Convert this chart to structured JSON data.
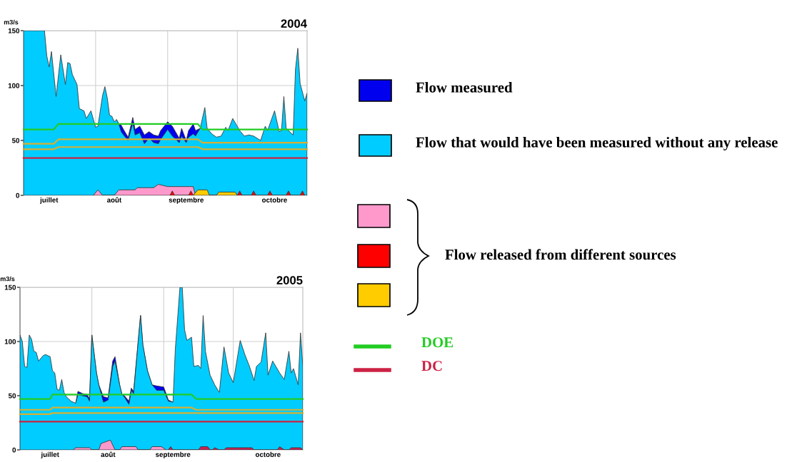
{
  "chart_data": [
    {
      "type": "area",
      "title": "2004",
      "ylabel": "m3/s",
      "legend": "right",
      "grid": true,
      "annotations": [
        "Flow released from different sources"
      ],
      "xlim": [
        "2004-07-01",
        "2004-10-31"
      ],
      "ylim": [
        0,
        150
      ],
      "yticks": [
        0,
        50,
        100,
        150
      ],
      "xticks": [
        {
          "value": "2004-07-12",
          "label": "juillet"
        },
        {
          "value": "2004-08-01",
          "label": null
        },
        {
          "value": "2004-08-09",
          "label": "août"
        },
        {
          "value": "2004-09-01",
          "label": null
        },
        {
          "value": "2004-09-09",
          "label": "septembre"
        },
        {
          "value": "2004-10-01",
          "label": null
        },
        {
          "value": "2004-10-17",
          "label": "octobre"
        }
      ],
      "series": [
        {
          "name": "Flow measured",
          "type": "area",
          "color": "#0000ee",
          "x": [
            "2004-08-10",
            "2004-08-11",
            "2004-08-12",
            "2004-08-13",
            "2004-08-15",
            "2004-08-17",
            "2004-08-18",
            "2004-08-20",
            "2004-08-22",
            "2004-08-24",
            "2004-08-26",
            "2004-08-28",
            "2004-08-29",
            "2004-09-01",
            "2004-09-03",
            "2004-09-06",
            "2004-09-07",
            "2004-09-09",
            "2004-09-10",
            "2004-09-12",
            "2004-09-13",
            "2004-09-15"
          ],
          "values": [
            69,
            65,
            64,
            60,
            53,
            71,
            60,
            63,
            55,
            58,
            55,
            54,
            59,
            67,
            63,
            52,
            61,
            50,
            59,
            65,
            59,
            61
          ]
        },
        {
          "name": "Flow that would have been measured without any release",
          "type": "area",
          "color": "#00ccff",
          "x": [
            "2004-07-01",
            "2004-07-10",
            "2004-07-11",
            "2004-07-12",
            "2004-07-13",
            "2004-07-15",
            "2004-07-17",
            "2004-07-19",
            "2004-07-20",
            "2004-07-21",
            "2004-07-22",
            "2004-07-24",
            "2004-07-25",
            "2004-07-27",
            "2004-07-28",
            "2004-07-30",
            "2004-08-01",
            "2004-08-02",
            "2004-08-04",
            "2004-08-05",
            "2004-08-06",
            "2004-08-07",
            "2004-08-08",
            "2004-08-09",
            "2004-08-10",
            "2004-08-11",
            "2004-08-12",
            "2004-08-13",
            "2004-08-15",
            "2004-08-17",
            "2004-08-18",
            "2004-08-20",
            "2004-08-22",
            "2004-08-24",
            "2004-08-26",
            "2004-08-28",
            "2004-08-29",
            "2004-09-01",
            "2004-09-03",
            "2004-09-06",
            "2004-09-07",
            "2004-09-09",
            "2004-09-10",
            "2004-09-12",
            "2004-09-13",
            "2004-09-15",
            "2004-09-17",
            "2004-09-18",
            "2004-09-20",
            "2004-09-22",
            "2004-09-24",
            "2004-09-26",
            "2004-09-27",
            "2004-09-29",
            "2004-10-02",
            "2004-10-04",
            "2004-10-06",
            "2004-10-08",
            "2004-10-11",
            "2004-10-13",
            "2004-10-14",
            "2004-10-17",
            "2004-10-19",
            "2004-10-20",
            "2004-10-21",
            "2004-10-22",
            "2004-10-25",
            "2004-10-26",
            "2004-10-27",
            "2004-10-28",
            "2004-10-30",
            "2004-10-31"
          ],
          "values": [
            150,
            150,
            127,
            117,
            131,
            90,
            128,
            101,
            121,
            120,
            110,
            101,
            79,
            77,
            70,
            77,
            62,
            63,
            91,
            99,
            89,
            73,
            72,
            67,
            69,
            65,
            58,
            55,
            50,
            66,
            55,
            57,
            47,
            52,
            48,
            47,
            51,
            60,
            54,
            48,
            54,
            48,
            53,
            56,
            54,
            61,
            80,
            61,
            56,
            53,
            54,
            62,
            59,
            70,
            59,
            54,
            55,
            54,
            50,
            63,
            59,
            77,
            58,
            59,
            90,
            61,
            55,
            115,
            134,
            102,
            86,
            93
          ]
        },
        {
          "type": "area",
          "color": "#ff99cc",
          "x": [
            "2004-07-31",
            "2004-08-02",
            "2004-08-04",
            "2004-08-09",
            "2004-08-11",
            "2004-08-18",
            "2004-08-19",
            "2004-08-26",
            "2004-08-28",
            "2004-09-01",
            "2004-09-12",
            "2004-09-13"
          ],
          "values": [
            0,
            5,
            0,
            0,
            5,
            5,
            7,
            7,
            10,
            8,
            8,
            0
          ]
        },
        {
          "type": "area",
          "color": "#ff0000",
          "x": [
            "2004-09-02",
            "2004-09-03",
            "2004-09-04",
            "2004-09-10",
            "2004-09-11",
            "2004-09-12",
            "2004-09-16",
            "2004-09-17",
            "2004-09-18",
            "2004-10-01",
            "2004-10-02",
            "2004-10-03",
            "2004-10-07",
            "2004-10-08",
            "2004-10-09",
            "2004-10-14",
            "2004-10-15",
            "2004-10-16",
            "2004-10-22",
            "2004-10-23",
            "2004-10-24",
            "2004-10-28",
            "2004-10-29",
            "2004-10-30"
          ],
          "values": [
            0,
            4,
            0,
            0,
            4,
            0,
            0,
            4,
            0,
            0,
            4,
            0,
            0,
            4,
            0,
            0,
            4,
            0,
            0,
            4,
            0,
            0,
            4,
            0
          ]
        },
        {
          "type": "area",
          "color": "#ffcc00",
          "x": [
            "2004-09-12",
            "2004-09-14",
            "2004-09-18",
            "2004-09-19",
            "2004-09-22",
            "2004-09-23",
            "2004-09-30",
            "2004-10-01"
          ],
          "values": [
            0,
            5,
            5,
            0,
            0,
            3,
            3,
            0
          ]
        },
        {
          "type": "line",
          "color": "#d9b030",
          "x": [
            "2004-07-01",
            "2004-07-14",
            "2004-07-16",
            "2004-09-14",
            "2004-09-16",
            "2004-10-31"
          ],
          "values": [
            42,
            42,
            44,
            44,
            42,
            42
          ]
        },
        {
          "type": "line",
          "color": "#d9b030",
          "x": [
            "2004-07-01",
            "2004-07-14",
            "2004-07-16",
            "2004-09-14",
            "2004-09-16",
            "2004-10-31"
          ],
          "values": [
            47,
            47,
            51,
            51,
            48,
            48
          ]
        },
        {
          "name": "DOE",
          "type": "line",
          "color": "#22cc22",
          "x": [
            "2004-07-01",
            "2004-07-14",
            "2004-07-16",
            "2004-09-14",
            "2004-09-16",
            "2004-10-31"
          ],
          "values": [
            60,
            60,
            65,
            65,
            60,
            60
          ]
        },
        {
          "name": "DC",
          "type": "line",
          "color": "#cc2244",
          "x": [
            "2004-07-01",
            "2004-10-31"
          ],
          "values": [
            34,
            34
          ]
        }
      ]
    },
    {
      "type": "area",
      "title": "2005",
      "ylabel": "m3/s",
      "grid": true,
      "xlim": [
        "2005-07-01",
        "2005-10-31"
      ],
      "ylim": [
        0,
        150
      ],
      "yticks": [
        0,
        50,
        100,
        150
      ],
      "xticks": [
        {
          "value": "2005-07-14",
          "label": "juillet"
        },
        {
          "value": "2005-08-01",
          "label": null
        },
        {
          "value": "2005-08-08",
          "label": "août"
        },
        {
          "value": "2005-09-01",
          "label": null
        },
        {
          "value": "2005-09-05",
          "label": "septembre"
        },
        {
          "value": "2005-10-01",
          "label": null
        },
        {
          "value": "2005-10-16",
          "label": "octobre"
        }
      ],
      "series": [
        {
          "type": "area",
          "color": "#0000ee",
          "x": [
            "2005-07-25",
            "2005-07-26",
            "2005-07-28",
            "2005-07-30",
            "2005-07-31",
            "2005-08-01",
            "2005-08-03",
            "2005-08-04",
            "2005-08-06",
            "2005-08-08",
            "2005-08-10",
            "2005-08-11",
            "2005-08-13",
            "2005-08-14",
            "2005-08-15",
            "2005-08-17",
            "2005-08-18",
            "2005-08-19",
            "2005-08-22",
            "2005-08-23",
            "2005-08-25",
            "2005-08-27",
            "2005-08-29",
            "2005-09-01",
            "2005-09-03",
            "2005-09-05"
          ],
          "values": [
            43,
            54,
            52,
            51,
            47,
            106,
            71,
            60,
            49,
            48,
            82,
            86,
            60,
            51,
            50,
            45,
            57,
            54,
            124,
            97,
            73,
            60,
            59,
            58,
            46,
            44
          ]
        },
        {
          "type": "area",
          "color": "#00ccff",
          "x": [
            "2005-07-01",
            "2005-07-02",
            "2005-07-03",
            "2005-07-04",
            "2005-07-05",
            "2005-07-06",
            "2005-07-07",
            "2005-07-08",
            "2005-07-09",
            "2005-07-11",
            "2005-07-12",
            "2005-07-14",
            "2005-07-15",
            "2005-07-16",
            "2005-07-17",
            "2005-07-18",
            "2005-07-19",
            "2005-07-20",
            "2005-07-21",
            "2005-07-23",
            "2005-07-25",
            "2005-07-26",
            "2005-07-28",
            "2005-07-30",
            "2005-07-31",
            "2005-08-01",
            "2005-08-03",
            "2005-08-04",
            "2005-08-06",
            "2005-08-08",
            "2005-08-10",
            "2005-08-11",
            "2005-08-13",
            "2005-08-14",
            "2005-08-15",
            "2005-08-17",
            "2005-08-18",
            "2005-08-19",
            "2005-08-22",
            "2005-08-23",
            "2005-08-25",
            "2005-08-27",
            "2005-08-29",
            "2005-09-01",
            "2005-09-03",
            "2005-09-05",
            "2005-09-06",
            "2005-09-08",
            "2005-09-09",
            "2005-09-10",
            "2005-09-11",
            "2005-09-13",
            "2005-09-14",
            "2005-09-16",
            "2005-09-17",
            "2005-09-18",
            "2005-09-19",
            "2005-09-21",
            "2005-09-23",
            "2005-09-25",
            "2005-09-27",
            "2005-09-29",
            "2005-10-01",
            "2005-10-04",
            "2005-10-06",
            "2005-10-08",
            "2005-10-10",
            "2005-10-11",
            "2005-10-13",
            "2005-10-15",
            "2005-10-16",
            "2005-10-18",
            "2005-10-21",
            "2005-10-23",
            "2005-10-25",
            "2005-10-26",
            "2005-10-27",
            "2005-10-29",
            "2005-10-30",
            "2005-10-31"
          ],
          "values": [
            106,
            100,
            77,
            76,
            106,
            102,
            91,
            90,
            82,
            87,
            88,
            86,
            73,
            71,
            56,
            55,
            65,
            53,
            49,
            45,
            43,
            51,
            50,
            49,
            45,
            106,
            71,
            60,
            44,
            46,
            77,
            82,
            60,
            51,
            49,
            42,
            55,
            52,
            124,
            97,
            73,
            60,
            55,
            55,
            45,
            44,
            93,
            150,
            150,
            111,
            101,
            104,
            77,
            78,
            75,
            124,
            91,
            69,
            60,
            53,
            95,
            71,
            62,
            101,
            88,
            77,
            64,
            77,
            81,
            108,
            69,
            82,
            71,
            65,
            91,
            71,
            75,
            60,
            108,
            77
          ]
        },
        {
          "type": "area",
          "color": "#ff99cc",
          "x": [
            "2005-07-24",
            "2005-07-25",
            "2005-07-31",
            "2005-08-01",
            "2005-08-04",
            "2005-08-05",
            "2005-08-09",
            "2005-08-11",
            "2005-08-13",
            "2005-08-14",
            "2005-08-20",
            "2005-08-21",
            "2005-08-26",
            "2005-08-27",
            "2005-08-31",
            "2005-09-02"
          ],
          "values": [
            0,
            2,
            2,
            0,
            0,
            6,
            9,
            0,
            0,
            3,
            3,
            0,
            0,
            3,
            3,
            0
          ]
        },
        {
          "type": "area",
          "color": "#cc2255",
          "x": [
            "2005-09-03",
            "2005-09-04",
            "2005-09-05",
            "2005-09-16",
            "2005-09-17",
            "2005-09-20",
            "2005-09-21",
            "2005-09-22",
            "2005-09-23",
            "2005-09-25",
            "2005-09-27",
            "2005-09-28",
            "2005-10-09",
            "2005-10-10",
            "2005-10-20",
            "2005-10-21",
            "2005-10-23",
            "2005-10-25",
            "2005-10-26",
            "2005-10-30",
            "2005-10-31"
          ],
          "values": [
            0,
            3,
            0,
            0,
            3,
            3,
            0,
            0,
            2,
            0,
            0,
            2,
            2,
            0,
            0,
            3,
            0,
            0,
            2,
            2,
            0
          ]
        },
        {
          "type": "line",
          "color": "#d9b030",
          "x": [
            "2005-07-01",
            "2005-07-14",
            "2005-07-15",
            "2005-09-13",
            "2005-09-15",
            "2005-10-31"
          ],
          "values": [
            33,
            33,
            34,
            34,
            34,
            34
          ]
        },
        {
          "type": "line",
          "color": "#d9b030",
          "x": [
            "2005-07-01",
            "2005-07-14",
            "2005-07-15",
            "2005-09-13",
            "2005-09-15",
            "2005-10-31"
          ],
          "values": [
            37,
            37,
            39,
            39,
            37,
            37
          ]
        },
        {
          "type": "line",
          "color": "#22cc22",
          "x": [
            "2005-07-01",
            "2005-07-14",
            "2005-07-15",
            "2005-09-13",
            "2005-09-15",
            "2005-10-31"
          ],
          "values": [
            47,
            47,
            51,
            51,
            47,
            47
          ]
        },
        {
          "type": "line",
          "color": "#cc2244",
          "x": [
            "2005-07-01",
            "2005-10-31"
          ],
          "values": [
            26,
            26
          ]
        }
      ]
    }
  ]
}
